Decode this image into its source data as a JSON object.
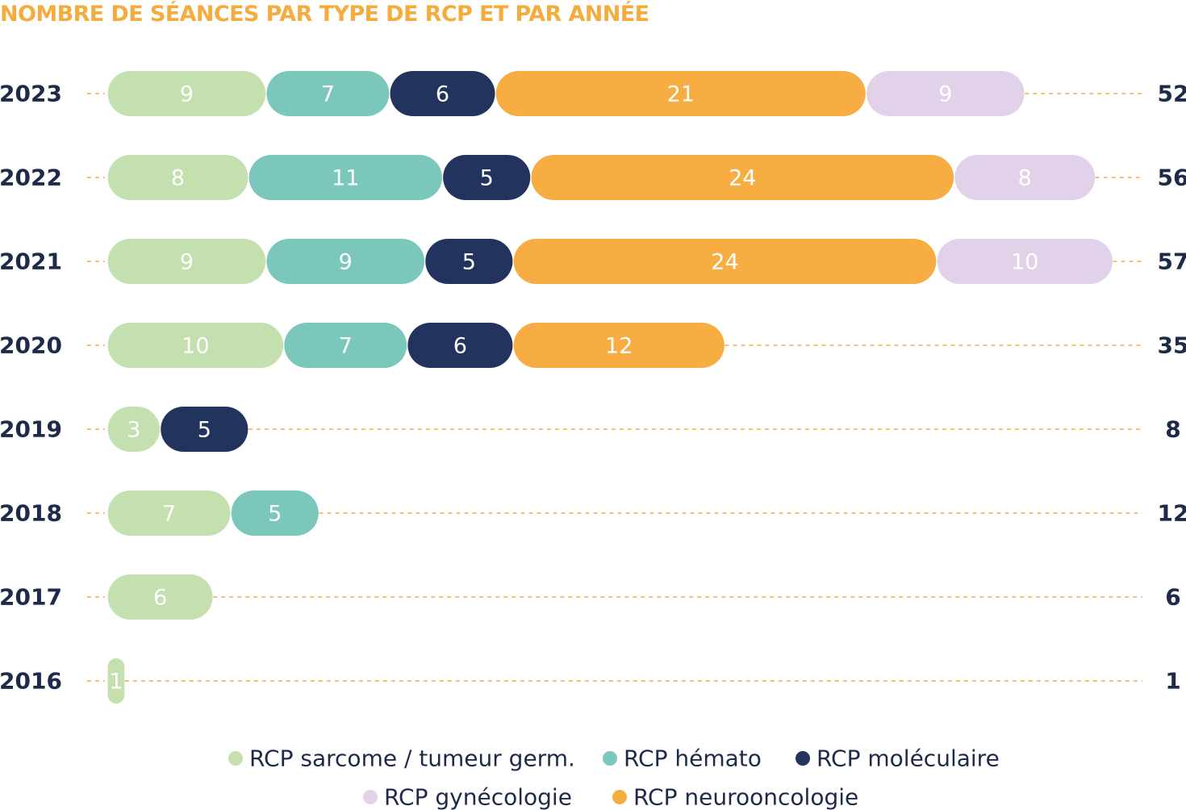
{
  "chart_data": {
    "type": "bar",
    "orientation": "horizontal",
    "stacked": true,
    "title": "NOMBRE DE SÉANCES PAR TYPE DE RCP ET PAR ANNÉE",
    "categories": [
      "2023",
      "2022",
      "2021",
      "2020",
      "2019",
      "2018",
      "2017",
      "2016"
    ],
    "totals": [
      52,
      56,
      57,
      35,
      8,
      12,
      6,
      1
    ],
    "series": [
      {
        "name": "RCP sarcome / tumeur germ.",
        "color": "#c4e0ae",
        "label_color": "#ffffff",
        "values": [
          9,
          8,
          9,
          10,
          3,
          7,
          6,
          1
        ]
      },
      {
        "name": "RCP hémato",
        "color": "#7bc7bc",
        "label_color": "#ffffff",
        "values": [
          7,
          11,
          9,
          7,
          0,
          5,
          0,
          0
        ]
      },
      {
        "name": "RCP moléculaire",
        "color": "#22345e",
        "label_color": "#ffffff",
        "values": [
          6,
          5,
          5,
          6,
          5,
          0,
          0,
          0
        ]
      },
      {
        "name": "RCP neurooncologie",
        "color": "#f7ad42",
        "label_color": "#ffffff",
        "values": [
          21,
          24,
          24,
          12,
          0,
          0,
          0,
          0
        ]
      },
      {
        "name": "RCP gynécologie",
        "color": "#e1d2ea",
        "label_color": "#ffffff",
        "values": [
          9,
          8,
          10,
          0,
          0,
          0,
          0,
          0
        ]
      }
    ],
    "legend_order": [
      "RCP sarcome / tumeur germ.",
      "RCP hémato",
      "RCP moléculaire",
      "RCP gynécologie",
      "RCP neurooncologie"
    ],
    "legend_position": "bottom",
    "grid": "dashed guide lines per row",
    "guide_color": "#f5ac3f",
    "label_color": "#1e2a4a"
  }
}
